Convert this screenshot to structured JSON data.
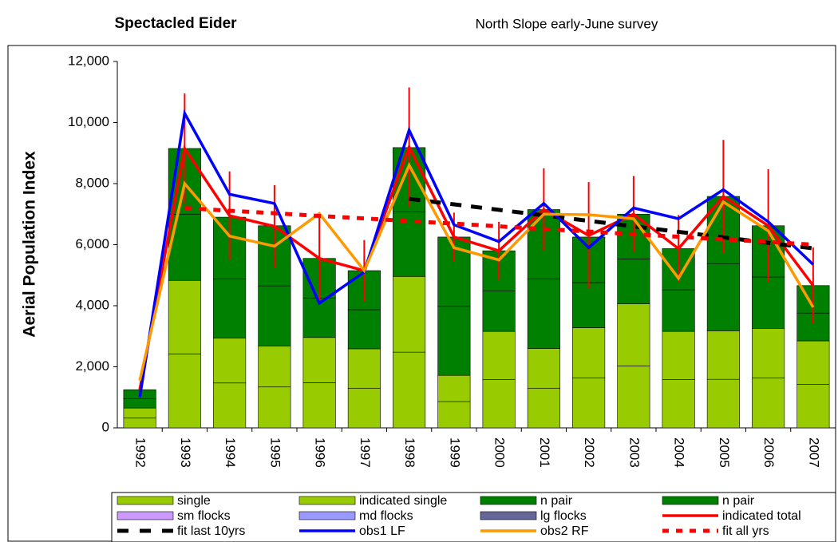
{
  "chart_data": {
    "type": "bar",
    "title": "Spectacled Eider",
    "subtitle": "North Slope early-June survey",
    "ylabel": "Aerial Population Index",
    "categories": [
      "1992",
      "1993",
      "1994",
      "1995",
      "1996",
      "1997",
      "1998",
      "1999",
      "2000",
      "2001",
      "2002",
      "2003",
      "2004",
      "2005",
      "2006",
      "2007"
    ],
    "ylim": [
      0,
      12000
    ],
    "yticks": [
      0,
      {
        "value": 2000,
        "label": "2,000"
      },
      {
        "value": 4000,
        "label": "4,000"
      },
      {
        "value": 6000,
        "label": "6,000"
      },
      {
        "value": 8000,
        "label": "8,000"
      },
      {
        "value": 10000,
        "label": "10,000"
      },
      {
        "value": 12000,
        "label": "12,000"
      }
    ],
    "grid": false,
    "legend": "bottom",
    "series": [
      {
        "name": "single",
        "type": "bar",
        "color": "#99cc00",
        "values": [
          320,
          2420,
          1470,
          1340,
          1480,
          1300,
          2480,
          860,
          1580,
          1300,
          1640,
          2030,
          1580,
          1590,
          1630,
          1430
        ]
      },
      {
        "name": "indicated single",
        "type": "bar",
        "color": "#99cc00",
        "values": [
          330,
          2410,
          1470,
          1340,
          1480,
          1290,
          2480,
          860,
          1580,
          1300,
          1640,
          2030,
          1580,
          1590,
          1630,
          1420
        ]
      },
      {
        "name": "n pair",
        "type": "bar",
        "color": "#008000",
        "values": [
          300,
          2170,
          1940,
          1970,
          1290,
          1280,
          2110,
          2260,
          1320,
          2280,
          1480,
          1470,
          1360,
          2200,
          1680,
          910
        ]
      },
      {
        "name": "n pair",
        "type": "bar",
        "color": "#008000",
        "values": [
          300,
          2150,
          2020,
          1970,
          1300,
          1280,
          2110,
          2270,
          1320,
          2270,
          1490,
          1470,
          1350,
          2200,
          1680,
          900
        ]
      },
      {
        "name": "sm flocks",
        "type": "bar",
        "color": "#cc99ff",
        "values": [
          0,
          0,
          0,
          0,
          0,
          0,
          0,
          0,
          0,
          0,
          0,
          0,
          0,
          0,
          0,
          0
        ]
      },
      {
        "name": "md flocks",
        "type": "bar",
        "color": "#9999ff",
        "values": [
          0,
          0,
          0,
          0,
          0,
          0,
          0,
          0,
          0,
          0,
          0,
          0,
          0,
          0,
          0,
          0
        ]
      },
      {
        "name": "lg flocks",
        "type": "bar",
        "color": "#666699",
        "values": [
          0,
          0,
          0,
          0,
          0,
          0,
          0,
          0,
          0,
          0,
          0,
          0,
          0,
          0,
          0,
          0
        ]
      },
      {
        "name": "indicated total",
        "type": "line",
        "color": "#ff0000",
        "dash": false,
        "values": [
          1250,
          9150,
          6950,
          6600,
          5550,
          5150,
          9200,
          6250,
          5800,
          7150,
          6300,
          7000,
          5870,
          7580,
          6620,
          4660
        ],
        "error": [
          null,
          1800,
          1450,
          1350,
          1350,
          1000,
          1950,
          800,
          950,
          1350,
          1750,
          1250,
          1100,
          1850,
          1850,
          1250
        ]
      },
      {
        "name": "fit last 10yrs",
        "type": "line",
        "color": "#000000",
        "dash": true,
        "values": [
          null,
          null,
          null,
          null,
          null,
          null,
          7500,
          7320,
          7140,
          6960,
          6780,
          6600,
          6420,
          6240,
          6060,
          5880
        ]
      },
      {
        "name": "obs1 LF",
        "type": "line",
        "color": "#0000ff",
        "dash": false,
        "values": [
          1000,
          10300,
          7650,
          7350,
          4080,
          5100,
          9750,
          6650,
          6100,
          7350,
          5900,
          7200,
          6850,
          7800,
          6750,
          5350
        ]
      },
      {
        "name": "obs2 RF",
        "type": "line",
        "color": "#ff9900",
        "dash": false,
        "values": [
          1550,
          8000,
          6280,
          5950,
          7020,
          5150,
          8600,
          5900,
          5500,
          7000,
          6980,
          6850,
          4900,
          7400,
          6450,
          3950
        ]
      },
      {
        "name": "fit all yrs",
        "type": "line",
        "color": "#ff0000",
        "dash": true,
        "values": [
          null,
          7200,
          7110,
          7030,
          6940,
          6860,
          6770,
          6690,
          6600,
          6510,
          6430,
          6340,
          6260,
          6170,
          6090,
          6000
        ]
      }
    ]
  }
}
